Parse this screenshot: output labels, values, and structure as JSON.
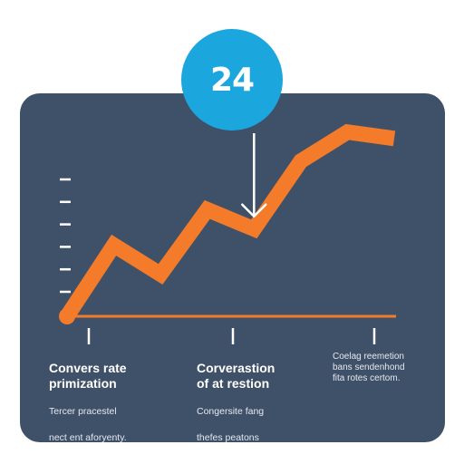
{
  "badge": {
    "value": "24"
  },
  "captions": [
    {
      "title_lines": [
        "Convers rate",
        "primization"
      ],
      "body_lines": [
        "Tercer pracestel",
        "nect ent aforyenty."
      ]
    },
    {
      "title_lines": [
        "Corverastion",
        "of at restion"
      ],
      "body_lines": [
        "Congersite fang",
        "thefes peatons"
      ]
    },
    {
      "title_lines": [
        "Coelag reemetion"
      ],
      "body_lines": [
        "bans sendenhond",
        "fita rotes certom."
      ]
    }
  ],
  "chart_data": {
    "type": "line",
    "x": [
      0,
      1,
      2,
      3,
      4,
      5,
      6,
      7
    ],
    "values": [
      0,
      22,
      13,
      33,
      27,
      48,
      57,
      55
    ],
    "ylim": [
      0,
      60
    ],
    "xlim": [
      0,
      7
    ],
    "y_ticks": 6,
    "x_ticks": 3,
    "grid": false,
    "baseline": true,
    "marker_x": 4,
    "colors": {
      "line": "#f47b2a",
      "axis": "#ffffff",
      "marker": "#ffffff",
      "panel": "#3f5168",
      "badge": "#1ba6de"
    }
  }
}
